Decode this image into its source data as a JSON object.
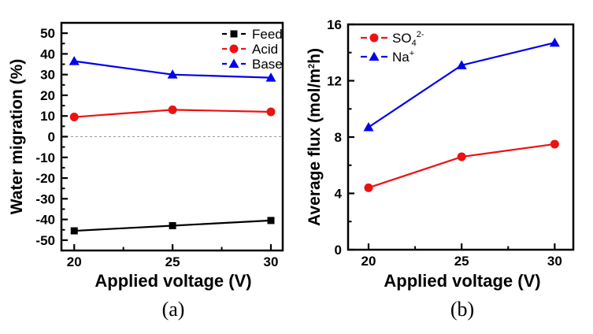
{
  "figure": {
    "background": "#ffffff",
    "axis_color": "#000000",
    "zero_line_color": "#999999"
  },
  "chart_data": [
    {
      "id": "a",
      "type": "line",
      "caption": "(a)",
      "xlabel": "Applied voltage (V)",
      "ylabel": "Water migration (%)",
      "ylabel_parts": [
        {
          "t": "Water migration (%)"
        }
      ],
      "x": [
        20,
        25,
        30
      ],
      "xlim": [
        19.35,
        30.6
      ],
      "ylim": [
        -55,
        55
      ],
      "x_major_ticks": [
        20,
        25,
        30
      ],
      "x_minor_ticks": [
        22.5,
        27.5
      ],
      "y_major_ticks": [
        -50,
        -40,
        -30,
        -20,
        -10,
        0,
        10,
        20,
        30,
        40,
        50
      ],
      "y_minor_ticks": [
        -45,
        -35,
        -25,
        -15,
        -5,
        5,
        15,
        25,
        35,
        45
      ],
      "grid": false,
      "zero_line": true,
      "legend_position": "top-right",
      "series": [
        {
          "name": "Feed",
          "label_parts": [
            {
              "t": "Feed"
            }
          ],
          "color": "#000000",
          "marker": "square",
          "values": [
            -45.5,
            -43,
            -40.5
          ]
        },
        {
          "name": "Acid",
          "label_parts": [
            {
              "t": "Acid"
            }
          ],
          "color": "#ee1111",
          "marker": "circle",
          "values": [
            9.5,
            13,
            12
          ]
        },
        {
          "name": "Base",
          "label_parts": [
            {
              "t": "Base"
            }
          ],
          "color": "#0000ee",
          "marker": "triangle",
          "values": [
            36.5,
            30,
            28.5
          ]
        }
      ]
    },
    {
      "id": "b",
      "type": "line",
      "caption": "(b)",
      "xlabel": "Applied voltage (V)",
      "ylabel": "Average flux (mol/m2h)",
      "ylabel_parts": [
        {
          "t": "Average flux (mol/m"
        },
        {
          "t": "2",
          "sup": true
        },
        {
          "t": "h)"
        }
      ],
      "x": [
        20,
        25,
        30
      ],
      "xlim": [
        18.9,
        31.0
      ],
      "ylim": [
        0,
        16
      ],
      "x_major_ticks": [
        20,
        25,
        30
      ],
      "x_minor_ticks": [
        22.5,
        27.5
      ],
      "y_major_ticks": [
        0,
        4,
        8,
        12,
        16
      ],
      "y_minor_ticks": [
        2,
        6,
        10,
        14
      ],
      "grid": false,
      "zero_line": false,
      "legend_position": "top-left",
      "series": [
        {
          "name": "SO4 2-",
          "label_parts": [
            {
              "t": "SO"
            },
            {
              "t": "4",
              "sub": true
            },
            {
              "t": "2-",
              "sup": true
            }
          ],
          "color": "#ee1111",
          "marker": "circle",
          "values": [
            4.4,
            6.6,
            7.5
          ]
        },
        {
          "name": "Na+",
          "label_parts": [
            {
              "t": "Na"
            },
            {
              "t": "+",
              "sup": true
            }
          ],
          "color": "#0000ee",
          "marker": "triangle",
          "values": [
            8.7,
            13.1,
            14.7
          ]
        }
      ]
    }
  ]
}
